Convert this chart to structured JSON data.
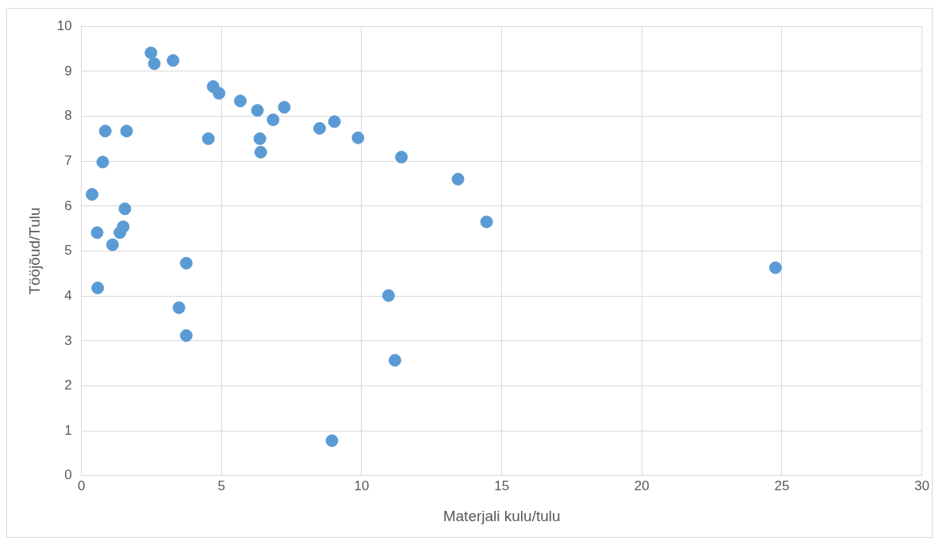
{
  "chart_data": {
    "type": "scatter",
    "xlabel": "Materjali kulu/tulu",
    "ylabel": "Tööjõud/Tulu",
    "x": [
      0.38,
      2.48,
      2.6,
      3.27,
      4.7,
      4.91,
      5.67,
      6.28,
      7.24,
      6.84,
      8.5,
      9.03,
      9.87,
      4.53,
      6.37,
      6.4,
      11.42,
      13.44,
      14.46,
      24.77,
      0.85,
      1.61,
      0.76,
      1.55,
      1.49,
      0.56,
      1.37,
      1.11,
      0.58,
      3.74,
      3.48,
      3.74,
      10.96,
      11.19,
      8.94
    ],
    "series": [
      {
        "color": "#5b9bd5",
        "values": [
          6.26,
          9.41,
          9.17,
          9.24,
          8.66,
          8.51,
          8.34,
          8.13,
          8.2,
          7.92,
          7.73,
          7.88,
          7.52,
          7.5,
          7.5,
          7.2,
          7.09,
          6.6,
          5.65,
          4.63,
          7.67,
          7.67,
          6.98,
          5.94,
          5.54,
          5.41,
          5.41,
          5.14,
          4.18,
          4.73,
          3.74,
          3.12,
          4.01,
          2.57,
          0.78
        ]
      }
    ],
    "xlim": [
      0,
      30
    ],
    "xticks": [
      0,
      5,
      10,
      15,
      20,
      25,
      30
    ],
    "ylim": [
      0,
      10
    ],
    "yticks": [
      0,
      1,
      2,
      3,
      4,
      5,
      6,
      7,
      8,
      9,
      10
    ],
    "grid": true,
    "legend": false,
    "marker": "circle"
  }
}
